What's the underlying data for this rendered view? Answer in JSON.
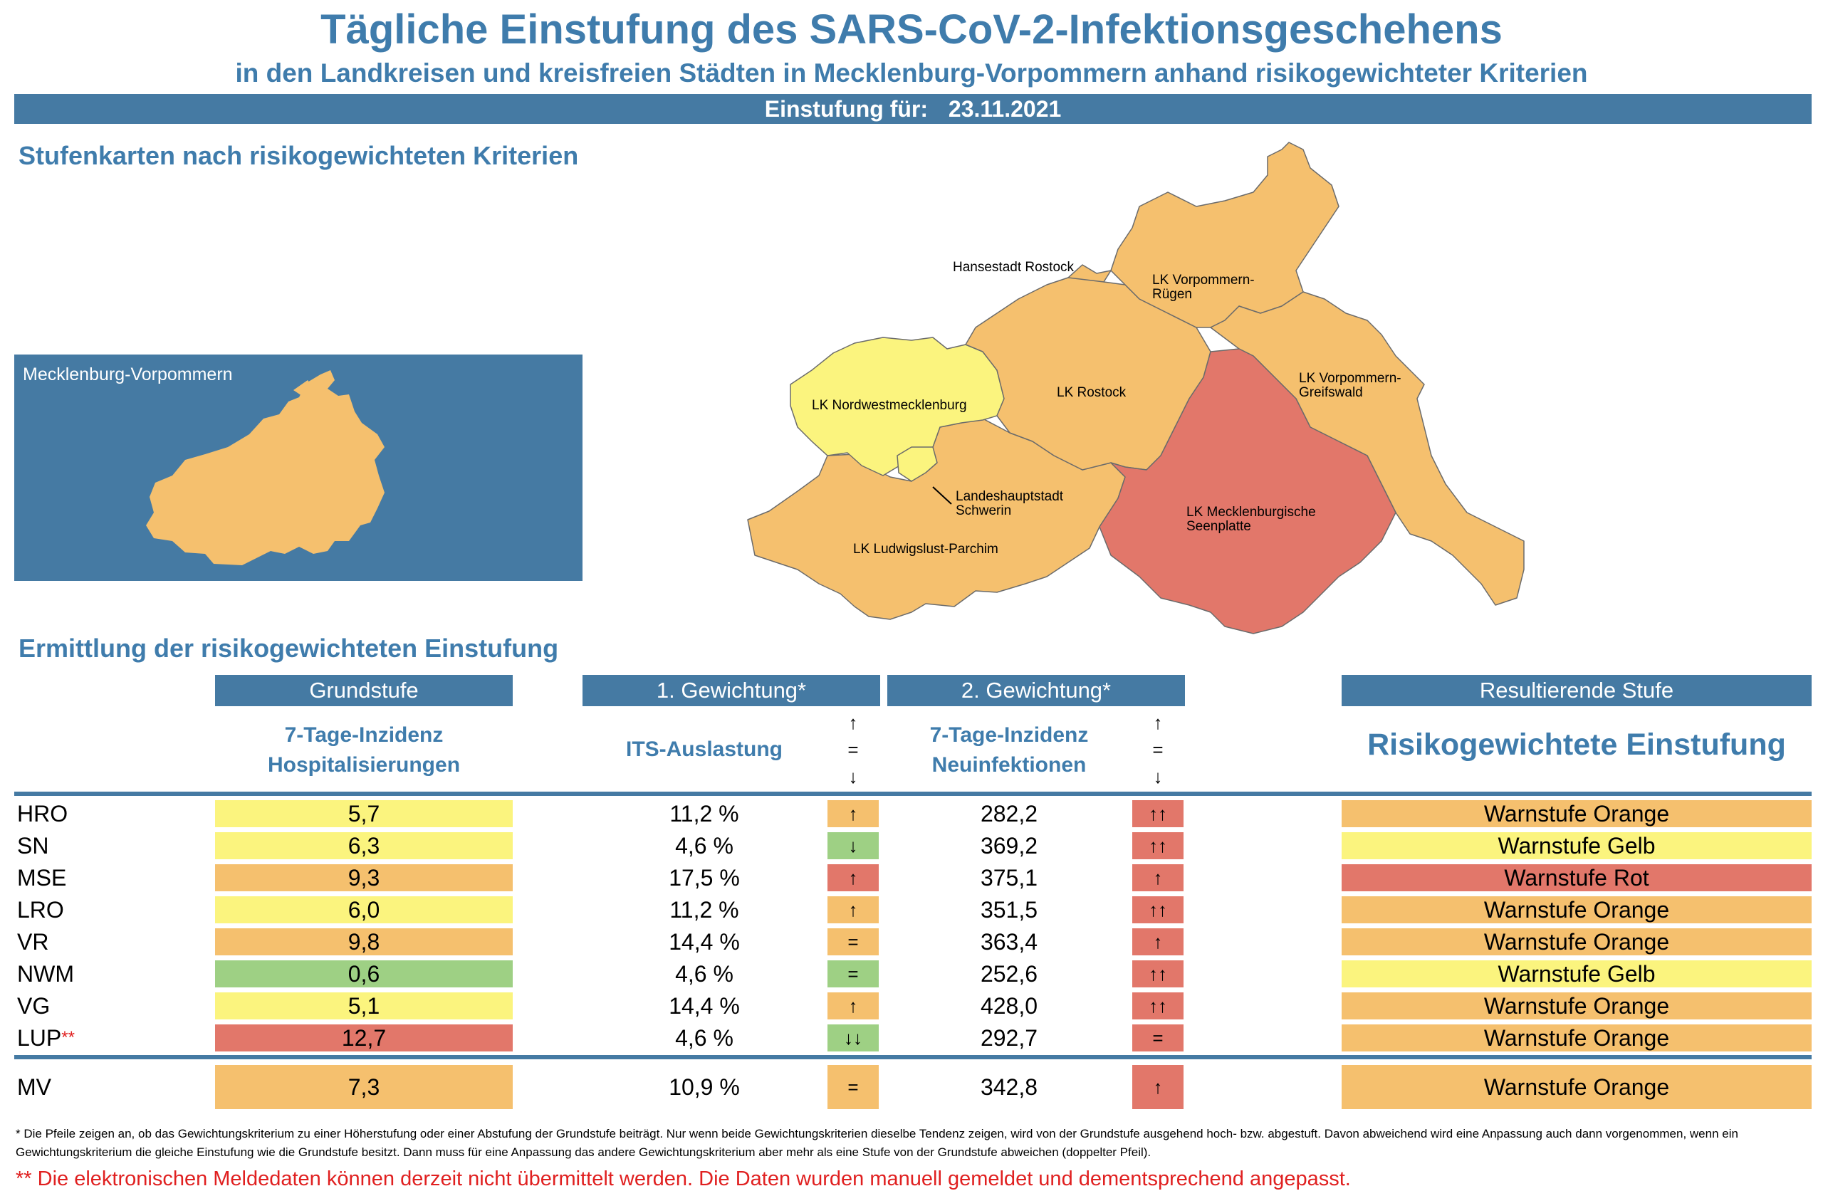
{
  "title": "Tägliche Einstufung des SARS-CoV-2-Infektionsgeschehens",
  "subtitle": "in den Landkreisen und kreisfreien Städten in Mecklenburg-Vorpommern anhand risikogewichteter Kriterien",
  "date_bar": {
    "label": "Einstufung für:",
    "date": "23.11.2021"
  },
  "map_section": {
    "heading": "Stufenkarten nach risikogewichteten Kriterien",
    "small_map_label": "Mecklenburg-Vorpommern",
    "regions": {
      "hro": "Hansestadt Rostock",
      "vr_1": "LK Vorpommern-",
      "vr_2": "Rügen",
      "nwm": "LK Nordwestmecklenburg",
      "lro": "LK Rostock",
      "vg_1": "LK Vorpommern-",
      "vg_2": "Greifswald",
      "sn_1": "Landeshauptstadt",
      "sn_2": "Schwerin",
      "mse_1": "LK Mecklenburgische",
      "mse_2": "Seenplatte",
      "lup": "LK Ludwigslust-Parchim"
    }
  },
  "table_section": {
    "heading": "Ermittlung der risikogewichteten Einstufung",
    "headers": {
      "grundstufe": "Grundstufe",
      "gew1": "1. Gewichtung*",
      "gew2": "2. Gewichtung*",
      "result": "Resultierende Stufe"
    },
    "subheaders": {
      "grund_1": "7-Tage-Inzidenz",
      "grund_2": "Hospitalisierungen",
      "its": "ITS-Auslastung",
      "neu_1": "7-Tage-Inzidenz",
      "neu_2": "Neuinfektionen",
      "result": "Risikogewichtete Einstufung"
    },
    "arrow_legend": {
      "up": "↑",
      "eq": "=",
      "down": "↓"
    },
    "rows": [
      {
        "name": "HRO",
        "star": "",
        "grund": "5,7",
        "its": "11,2 %",
        "arrow1": "↑",
        "neu": "282,2",
        "arrow2": "↑↑",
        "result": "Warnstufe Orange"
      },
      {
        "name": "SN",
        "star": "",
        "grund": "6,3",
        "its": "4,6 %",
        "arrow1": "↓",
        "neu": "369,2",
        "arrow2": "↑↑",
        "result": "Warnstufe Gelb"
      },
      {
        "name": "MSE",
        "star": "",
        "grund": "9,3",
        "its": "17,5 %",
        "arrow1": "↑",
        "neu": "375,1",
        "arrow2": "↑",
        "result": "Warnstufe Rot"
      },
      {
        "name": "LRO",
        "star": "",
        "grund": "6,0",
        "its": "11,2 %",
        "arrow1": "↑",
        "neu": "351,5",
        "arrow2": "↑↑",
        "result": "Warnstufe Orange"
      },
      {
        "name": "VR",
        "star": "",
        "grund": "9,8",
        "its": "14,4 %",
        "arrow1": "=",
        "neu": "363,4",
        "arrow2": "↑",
        "result": "Warnstufe Orange"
      },
      {
        "name": "NWM",
        "star": "",
        "grund": "0,6",
        "its": "4,6 %",
        "arrow1": "=",
        "neu": "252,6",
        "arrow2": "↑↑",
        "result": "Warnstufe Gelb"
      },
      {
        "name": "VG",
        "star": "",
        "grund": "5,1",
        "its": "14,4 %",
        "arrow1": "↑",
        "neu": "428,0",
        "arrow2": "↑↑",
        "result": "Warnstufe Orange"
      },
      {
        "name": "LUP",
        "star": "**",
        "grund": "12,7",
        "its": "4,6 %",
        "arrow1": "↓↓",
        "neu": "292,7",
        "arrow2": "=",
        "result": "Warnstufe Orange"
      }
    ],
    "total": {
      "name": "MV",
      "grund": "7,3",
      "its": "10,9 %",
      "arrow1": "=",
      "neu": "342,8",
      "arrow2": "↑",
      "result": "Warnstufe Orange"
    }
  },
  "colors": {
    "blue": "#457aa3",
    "title_blue": "#3f7cac",
    "yellow": "#fbf47e",
    "orange": "#f5c06e",
    "red": "#e2776a",
    "green": "#9ed084"
  },
  "footnote": "* Die Pfeile zeigen an, ob das Gewichtungskriterium zu einer Höherstufung oder einer Abstufung der Grundstufe beiträgt. Nur wenn beide Gewichtungskriterien dieselbe Tendenz zeigen, wird von der Grundstufe ausgehend hoch- bzw. abgestuft.  Davon abweichend wird eine Anpassung auch dann vorgenommen, wenn ein Gewichtungskriterium die gleiche Einstufung wie die Grundstufe besitzt. Dann muss für eine Anpassung das andere Gewichtungskriterium aber mehr als eine Stufe von der Grundstufe abweichen (doppelter Pfeil).",
  "footnote2": "** Die elektronischen Meldedaten können derzeit nicht übermittelt werden. Die Daten wurden manuell gemeldet und dementsprechend angepasst."
}
